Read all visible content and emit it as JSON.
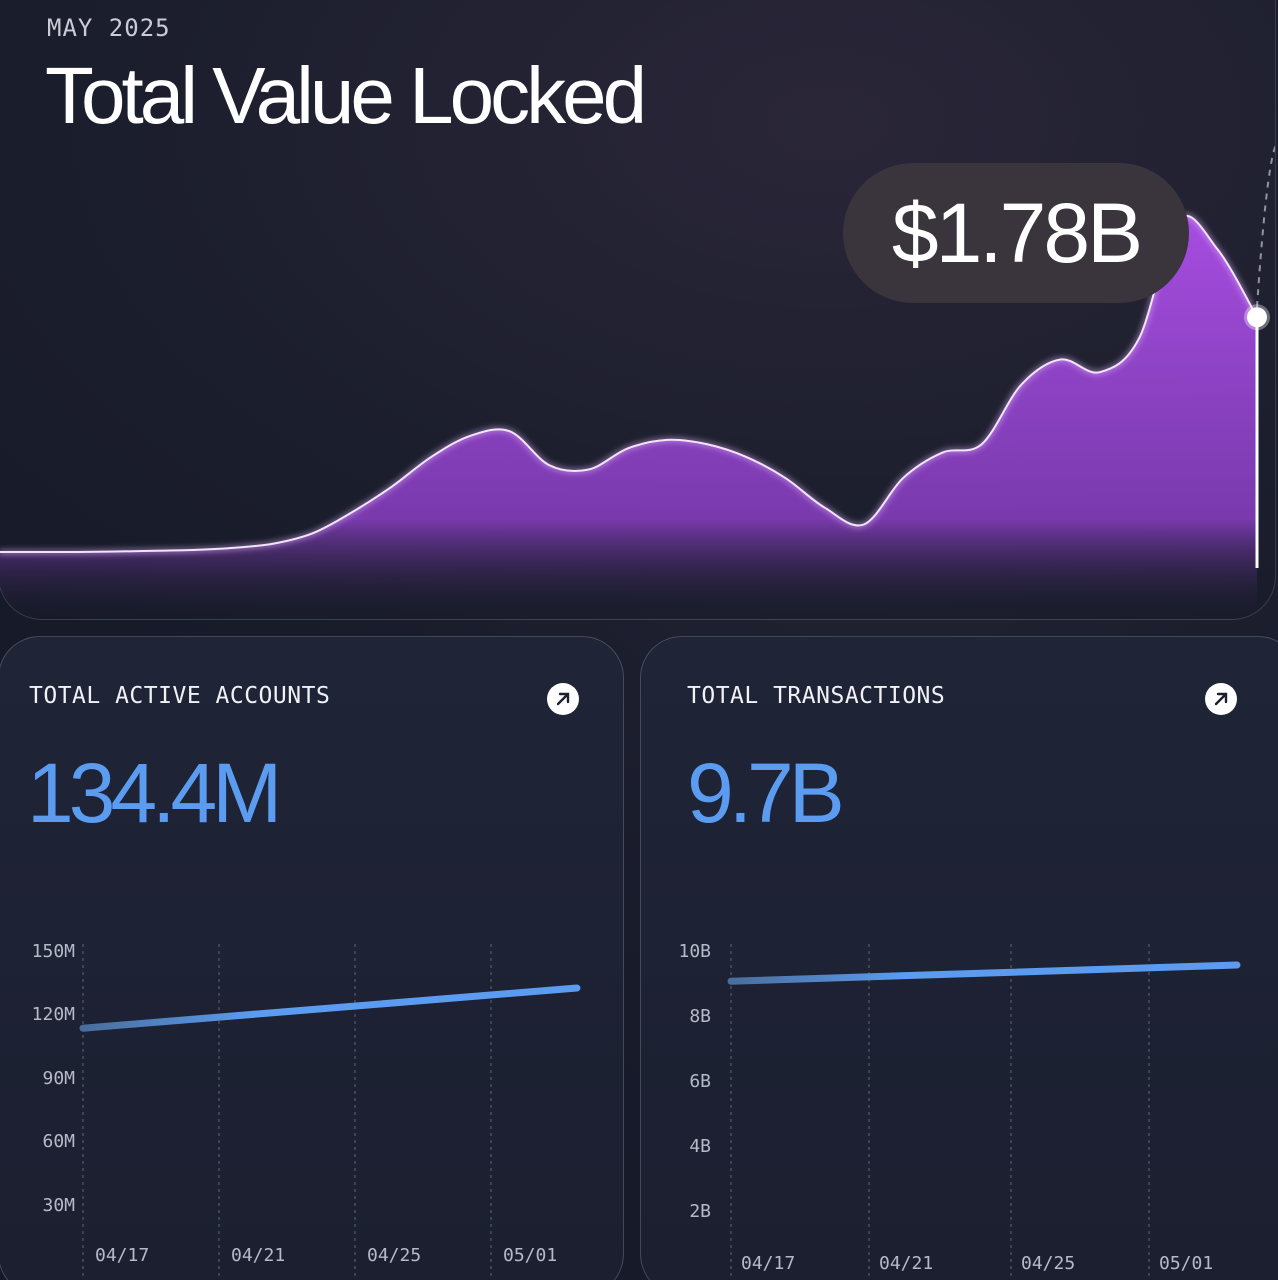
{
  "hero": {
    "date": "MAY 2025",
    "title": "Total Value Locked",
    "value": "$1.78B",
    "accent_color": "#a64de0",
    "series": [
      0.045,
      0.045,
      0.045,
      0.046,
      0.048,
      0.05,
      0.055,
      0.065,
      0.09,
      0.14,
      0.2,
      0.27,
      0.32,
      0.33,
      0.25,
      0.24,
      0.29,
      0.31,
      0.3,
      0.27,
      0.22,
      0.15,
      0.11,
      0.22,
      0.28,
      0.3,
      0.44,
      0.5,
      0.47,
      0.55,
      0.83,
      0.76,
      0.6
    ]
  },
  "cards": [
    {
      "title": "TOTAL ACTIVE ACCOUNTS",
      "value": "134.4M",
      "link_icon": "arrow-up-right-icon",
      "line_color": "#5b9cf0",
      "chart_data": {
        "type": "line",
        "x": [
          "04/17",
          "04/21",
          "04/25",
          "05/01"
        ],
        "y_ticks": [
          "150M",
          "120M",
          "90M",
          "60M",
          "30M"
        ],
        "ylim": [
          20,
          150
        ],
        "start": 114,
        "end": 133
      }
    },
    {
      "title": "TOTAL TRANSACTIONS",
      "value": "9.7B",
      "link_icon": "arrow-up-right-icon",
      "line_color": "#5b9cf0",
      "chart_data": {
        "type": "line",
        "x": [
          "04/17",
          "04/21",
          "04/25",
          "05/01"
        ],
        "y_ticks": [
          "10B",
          "8B",
          "6B",
          "4B",
          "2B"
        ],
        "ylim": [
          1,
          10
        ],
        "start": 9.1,
        "end": 9.6
      }
    }
  ]
}
